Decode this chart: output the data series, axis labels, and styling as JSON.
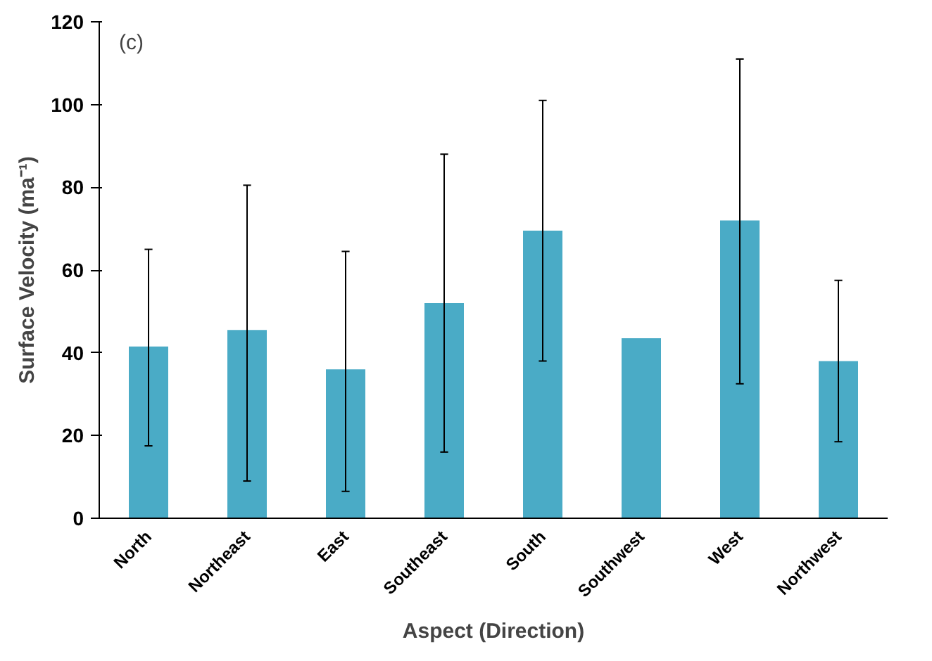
{
  "chart_data": {
    "type": "bar",
    "xlabel": "Aspect (Direction)",
    "ylabel": "Surface Velocity (ma⁻¹)",
    "annotations": [
      "(c)"
    ],
    "categories": [
      "North",
      "Northeast",
      "East",
      "Southeast",
      "South",
      "Southwest",
      "West",
      "Northwest"
    ],
    "values": [
      41.5,
      45.5,
      36,
      52,
      69.5,
      43.5,
      72,
      38
    ],
    "errors": [
      [
        17.5,
        65
      ],
      [
        9,
        80.5
      ],
      [
        6.5,
        64.5
      ],
      [
        16,
        88
      ],
      [
        38,
        101
      ],
      null,
      [
        32.5,
        111
      ],
      [
        18.5,
        57.5
      ]
    ],
    "color": "#4aabc6",
    "ylim": [
      0,
      120
    ],
    "yticks": [
      0,
      20,
      40,
      60,
      80,
      100,
      120
    ],
    "grid": false
  }
}
